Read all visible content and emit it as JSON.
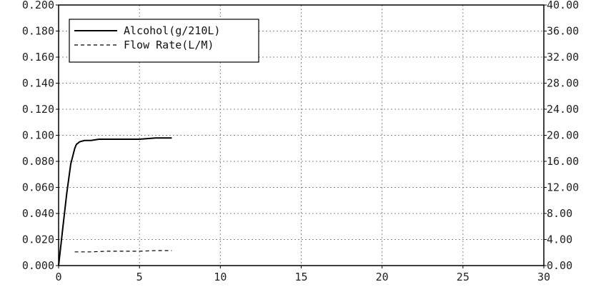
{
  "chart_data": {
    "type": "line",
    "title": "",
    "xlabel": "",
    "ylabel": "",
    "xlim": [
      0,
      30
    ],
    "ylim": [
      0.0,
      0.2
    ],
    "y2lim": [
      0.0,
      40.0
    ],
    "grid": true,
    "legend_position": "top-left",
    "x_ticks": [
      "0",
      "5",
      "10",
      "15",
      "20",
      "25",
      "30"
    ],
    "y_ticks": [
      "0.000",
      "0.020",
      "0.040",
      "0.060",
      "0.080",
      "0.100",
      "0.120",
      "0.140",
      "0.160",
      "0.180",
      "0.200"
    ],
    "y2_ticks": [
      "0.00",
      "4.00",
      "8.00",
      "12.00",
      "16.00",
      "20.00",
      "24.00",
      "28.00",
      "32.00",
      "36.00",
      "40.00"
    ],
    "series": [
      {
        "name": "Alcohol(g/210L)",
        "axis": "left",
        "style": "solid",
        "x": [
          0.0,
          0.25,
          0.5,
          0.75,
          1.0,
          1.1,
          1.3,
          1.6,
          2.0,
          2.5,
          3.0,
          4.0,
          5.0,
          6.0,
          7.0
        ],
        "y": [
          0.0,
          0.028,
          0.055,
          0.078,
          0.09,
          0.093,
          0.095,
          0.096,
          0.096,
          0.097,
          0.097,
          0.097,
          0.097,
          0.098,
          0.098
        ]
      },
      {
        "name": "Flow Rate(L/M)",
        "axis": "right",
        "style": "dashed",
        "x": [
          1.0,
          2.0,
          3.0,
          4.0,
          5.0,
          6.0,
          7.0
        ],
        "y": [
          2.1,
          2.1,
          2.2,
          2.2,
          2.2,
          2.3,
          2.3
        ]
      }
    ]
  },
  "colors": {
    "line": "#000000",
    "grid": "#8a8a8a",
    "text": "#222222"
  }
}
